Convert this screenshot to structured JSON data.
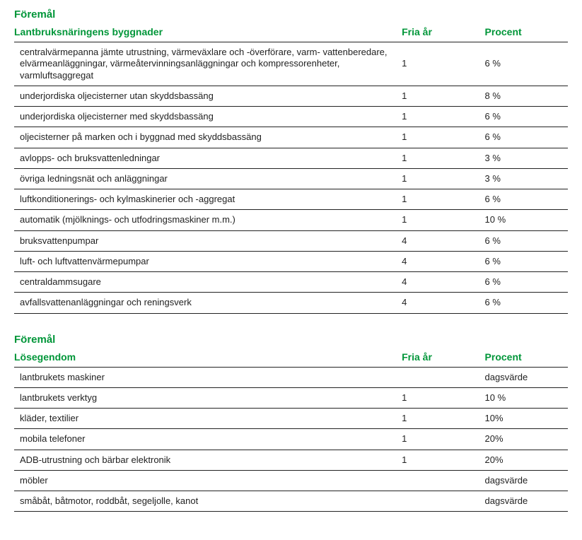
{
  "colors": {
    "accent": "#009639",
    "text": "#222222",
    "border": "#222222",
    "background": "#ffffff"
  },
  "tables": [
    {
      "title": "Föremål",
      "columns": [
        "Lantbruksnäringens byggnader",
        "Fria år",
        "Procent"
      ],
      "rows": [
        {
          "desc": "centralvärmepanna jämte utrustning, värmeväxlare och -överförare, varm-\nvattenberedare, elvärmeanläggningar, värmeåtervinningsanläggningar och kompressorenheter, varmluftsaggregat",
          "fria": "1",
          "procent": "6 %"
        },
        {
          "desc": "underjordiska oljecisterner utan skyddsbassäng",
          "fria": "1",
          "procent": "8 %"
        },
        {
          "desc": "underjordiska oljecisterner med skyddsbassäng",
          "fria": "1",
          "procent": "6 %"
        },
        {
          "desc": "oljecisterner på marken och i byggnad med skyddsbassäng",
          "fria": "1",
          "procent": "6 %"
        },
        {
          "desc": "avlopps- och bruksvattenledningar",
          "fria": "1",
          "procent": "3 %"
        },
        {
          "desc": "övriga ledningsnät och anläggningar",
          "fria": "1",
          "procent": "3 %"
        },
        {
          "desc": "luftkonditionerings- och kylmaskinerier och -aggregat",
          "fria": "1",
          "procent": "6 %"
        },
        {
          "desc": "automatik (mjölknings- och utfodringsmaskiner m.m.)",
          "fria": "1",
          "procent": "10 %"
        },
        {
          "desc": "bruksvattenpumpar",
          "fria": "4",
          "procent": "6 %"
        },
        {
          "desc": "luft- och luftvattenvärmepumpar",
          "fria": "4",
          "procent": "6 %"
        },
        {
          "desc": "centraldammsugare",
          "fria": "4",
          "procent": "6 %"
        },
        {
          "desc": "avfallsvattenanläggningar och reningsverk",
          "fria": "4",
          "procent": "6 %"
        }
      ]
    },
    {
      "title": "Föremål",
      "columns": [
        "Lösegendom",
        "Fria år",
        "Procent"
      ],
      "rows": [
        {
          "desc": "lantbrukets maskiner",
          "fria": "",
          "procent": "dagsvärde"
        },
        {
          "desc": "lantbrukets verktyg",
          "fria": "1",
          "procent": "10 %"
        },
        {
          "desc": "kläder, textilier",
          "fria": "1",
          "procent": "10%"
        },
        {
          "desc": "mobila telefoner",
          "fria": "1",
          "procent": "20%"
        },
        {
          "desc": "ADB-utrustning och bärbar elektronik",
          "fria": "1",
          "procent": "20%"
        },
        {
          "desc": "möbler",
          "fria": "",
          "procent": "dagsvärde"
        },
        {
          "desc": "småbåt, båtmotor, roddbåt, segeljolle, kanot",
          "fria": "",
          "procent": "dagsvärde"
        }
      ]
    }
  ]
}
